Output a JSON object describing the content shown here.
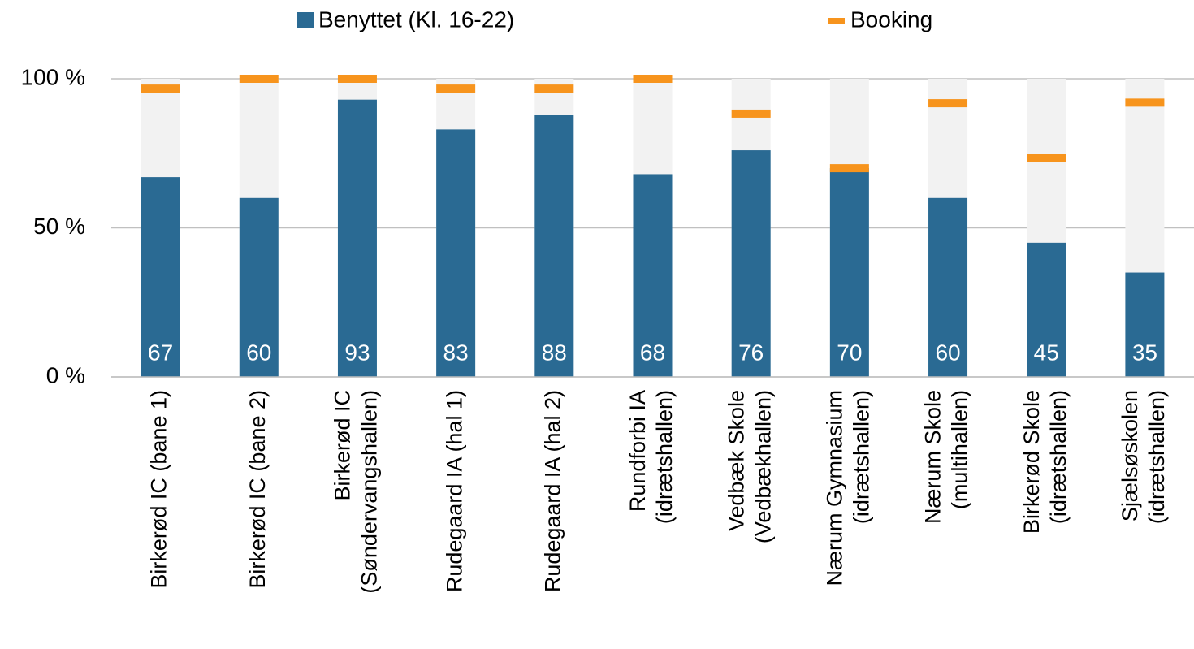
{
  "chart_data": {
    "type": "bar",
    "categories": [
      [
        "Birkerød IC (bane 1)"
      ],
      [
        "Birkerød IC (bane 2)"
      ],
      [
        "Birkerød IC",
        "(Søndervangshallen)"
      ],
      [
        "Rudegaard IA (hal 1)"
      ],
      [
        "Rudegaard IA (hal 2)"
      ],
      [
        "Rundforbi IA",
        "(idrætshallen)"
      ],
      [
        "Vedbæk Skole",
        "(Vedbækhallen)"
      ],
      [
        "Nærum Gymnasium",
        "(idrætshallen)"
      ],
      [
        "Nærum Skole",
        "(multihallen)"
      ],
      [
        "Birkerød Skole",
        "(idrætshallen)"
      ],
      [
        "Sjælsøskolen",
        "(idrætshallen)"
      ]
    ],
    "series": [
      {
        "name": "Benyttet (Kl. 16-22)",
        "color": "#2a6a93",
        "values": [
          67,
          60,
          93,
          83,
          88,
          68,
          76,
          70,
          60,
          45,
          35
        ]
      },
      {
        "name": "Booking",
        "color": "#f7941d",
        "values": [
          96.7,
          100,
          100,
          96.7,
          96.7,
          100,
          88.3,
          70,
          91.8,
          73.3,
          92
        ]
      }
    ],
    "ylim": [
      0,
      100
    ],
    "yticks": [
      {
        "value": 0,
        "label": "0 %"
      },
      {
        "value": 50,
        "label": "50 %"
      },
      {
        "value": 100,
        "label": "100 %"
      }
    ],
    "grid": true
  }
}
